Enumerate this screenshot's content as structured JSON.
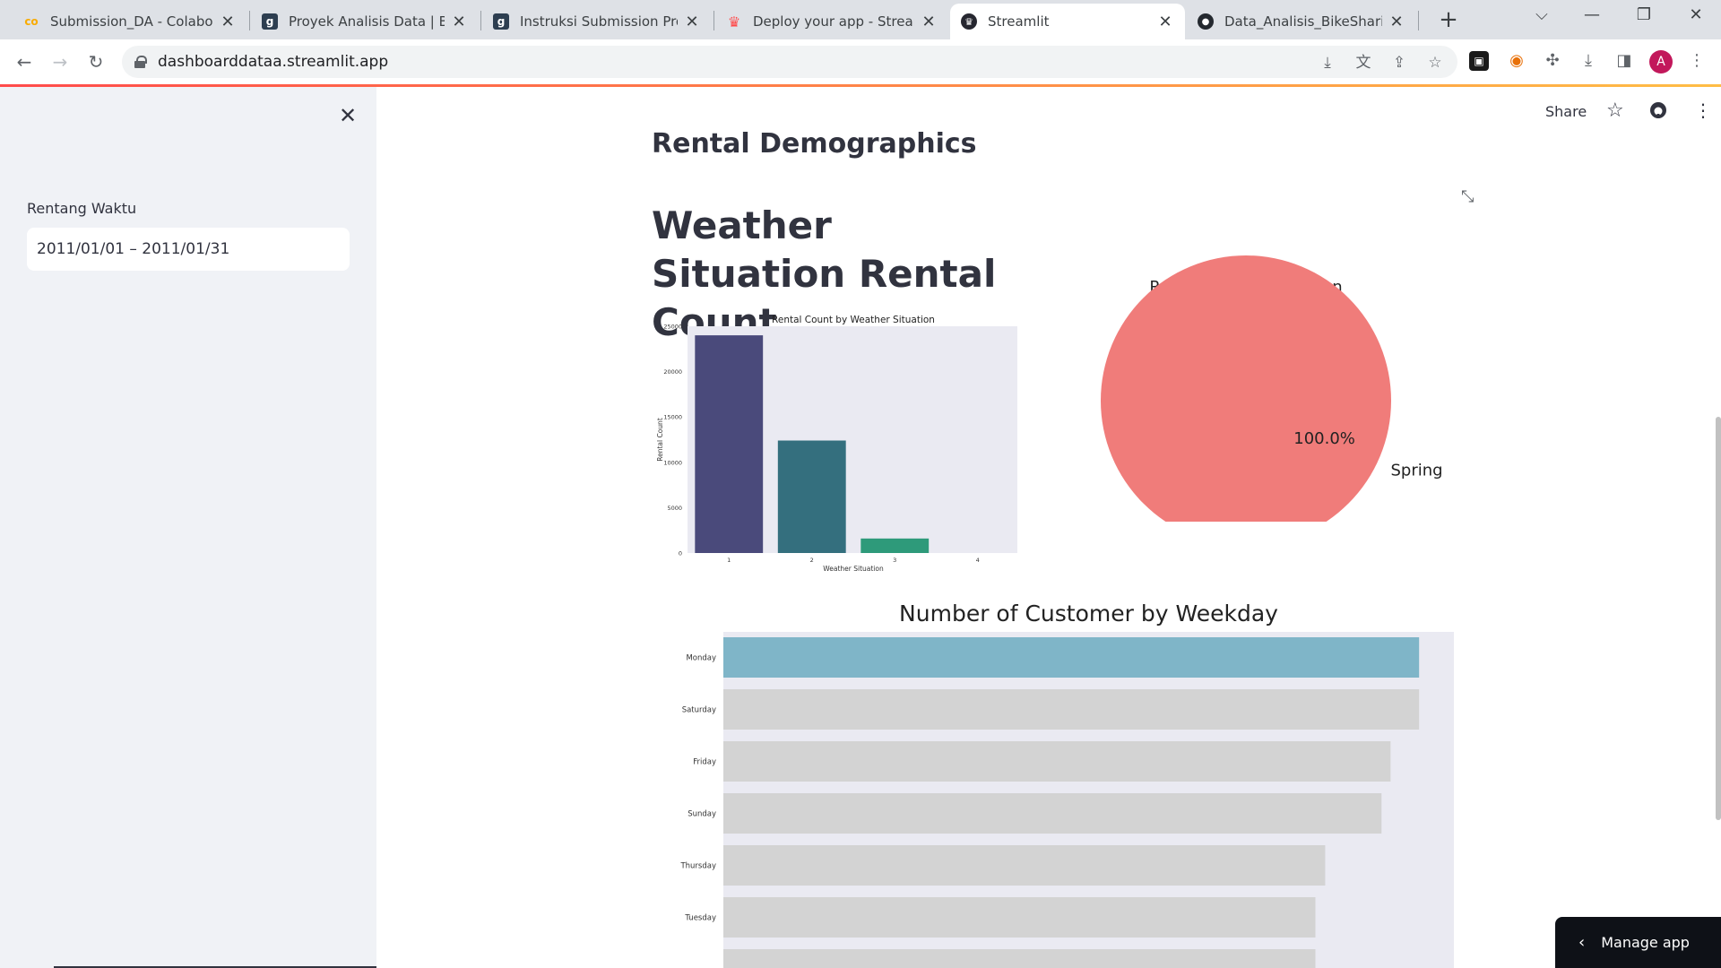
{
  "browser": {
    "tabs": [
      {
        "title": "Submission_DA - Colabora",
        "icon": "colab-icon"
      },
      {
        "title": "Proyek Analisis Data | Belaj",
        "icon": "dicoding-icon"
      },
      {
        "title": "Instruksi Submission Proye",
        "icon": "dicoding-icon"
      },
      {
        "title": "Deploy your app - Streaml",
        "icon": "streamlit-icon"
      },
      {
        "title": "Streamlit",
        "icon": "streamlit-icon"
      },
      {
        "title": "Data_Analisis_BikeSharing/",
        "icon": "github-icon"
      }
    ],
    "active_tab": 4,
    "url": "dashboarddataa.streamlit.app",
    "avatar_letter": "A"
  },
  "sidebar": {
    "date_label": "Rentang Waktu",
    "date_value": "2011/01/01 – 2011/01/31"
  },
  "header": {
    "share_label": "Share"
  },
  "main": {
    "subheader": "Rental Demographics",
    "title": "Weather Situation Rental Count"
  },
  "manage_app": {
    "label": "Manage app"
  },
  "chart_data": [
    {
      "type": "bar",
      "title": "Rental Count by Weather Situation",
      "xlabel": "Weather Situation",
      "ylabel": "Rental Count",
      "categories": [
        "1",
        "2",
        "3",
        "4"
      ],
      "values": [
        24000,
        12400,
        1600,
        0
      ],
      "ylim": [
        0,
        25000
      ],
      "yticks": [
        0,
        5000,
        10000,
        15000,
        20000,
        25000
      ],
      "colors": [
        "#4a4a7b",
        "#346f7e",
        "#2e9a7a",
        "#5fbf6a"
      ]
    },
    {
      "type": "pie",
      "title": "Rental Count by Season",
      "labels": [
        "Spring"
      ],
      "values": [
        100.0
      ],
      "autopct": [
        "100.0%"
      ],
      "colors": [
        "#f07c7a"
      ]
    },
    {
      "type": "bar",
      "orientation": "horizontal",
      "title": "Number of Customer by Weekday",
      "categories": [
        "Monday",
        "Saturday",
        "Friday",
        "Sunday",
        "Thursday",
        "Tuesday"
      ],
      "values": [
        100,
        100,
        95.9,
        94.6,
        86.5,
        85.1
      ],
      "xlim": [
        0,
        105
      ],
      "highlight_color": "#7fb5c8",
      "default_color": "#d3d3d3",
      "background": "#eaeaf2"
    }
  ]
}
